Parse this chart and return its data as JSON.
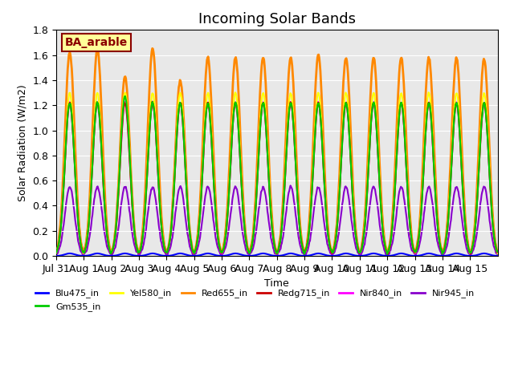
{
  "title": "Incoming Solar Bands",
  "xlabel": "Time",
  "ylabel": "Solar Radiation (W/m2)",
  "annotation": "BA_arable",
  "ylim": [
    0,
    1.8
  ],
  "xtick_labels": [
    "Jul 31",
    "Aug 1",
    "Aug 2",
    "Aug 3",
    "Aug 4",
    "Aug 5",
    "Aug 6",
    "Aug 7",
    "Aug 8",
    "Aug 9",
    "Aug 10",
    "Aug 11",
    "Aug 12",
    "Aug 13",
    "Aug 14",
    "Aug 15"
  ],
  "colors": {
    "Blu475_in": "#0000ff",
    "Gm535_in": "#00cc00",
    "Yel580_in": "#ffff00",
    "Red655_in": "#ff8800",
    "Redg715_in": "#cc0000",
    "Nir840_in": "#ff00ff",
    "Nir945_in": "#8800cc"
  },
  "bg_color": "#e8e8e8",
  "title_fontsize": 13,
  "axis_fontsize": 9
}
